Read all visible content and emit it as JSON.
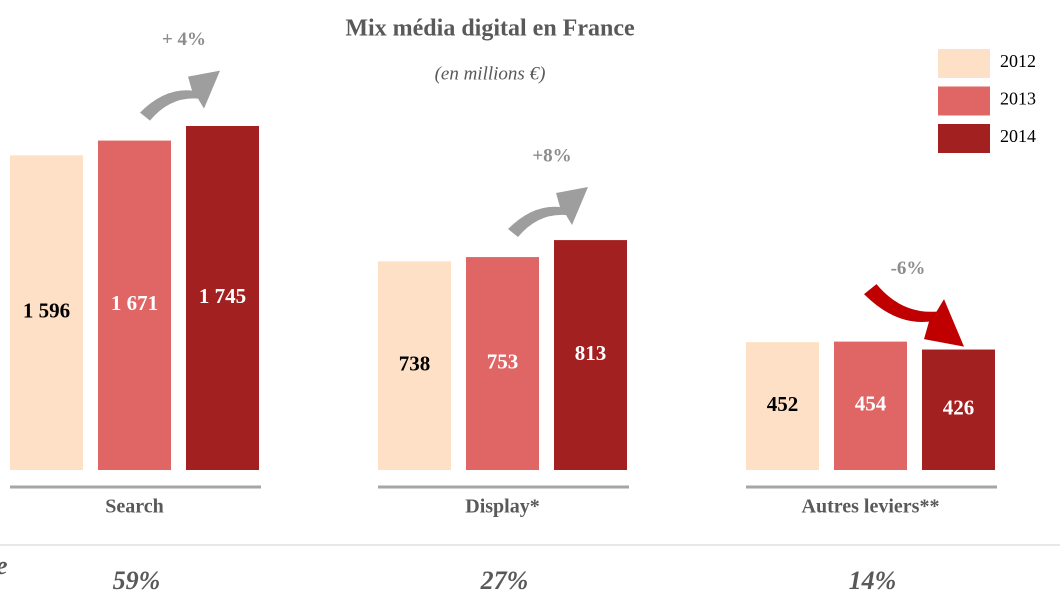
{
  "title": "Mix média digital en France",
  "subtitle": "(en millions €)",
  "left_note": "e",
  "chart_data": [
    {
      "type": "bar",
      "categories": [
        "Search"
      ],
      "ylim": [
        0,
        1750
      ],
      "series": [
        {
          "name": "2012",
          "color": "#fde0c5",
          "values": [
            1596
          ],
          "value_labels": [
            "1 596"
          ]
        },
        {
          "name": "2013",
          "color": "#e06666",
          "values": [
            1671
          ],
          "value_labels": [
            "1 671"
          ]
        },
        {
          "name": "2014",
          "color": "#a32020",
          "values": [
            1745
          ],
          "value_labels": [
            "1 745"
          ]
        }
      ],
      "annotation": "+ 4%",
      "arrow_color": "#9e9e9e",
      "arrow": "up",
      "share": 59,
      "share_label": "59%"
    },
    {
      "type": "bar",
      "categories": [
        "Display*"
      ],
      "ylim": [
        0,
        1220
      ],
      "series": [
        {
          "name": "2012",
          "color": "#fde0c5",
          "values": [
            738
          ]
        },
        {
          "name": "2013",
          "color": "#e06666",
          "values": [
            753
          ]
        },
        {
          "name": "2014",
          "color": "#a32020",
          "values": [
            813
          ]
        }
      ],
      "annotation": "+8%",
      "arrow_color": "#9e9e9e",
      "arrow": "up",
      "share": 27,
      "share_label": "27%"
    },
    {
      "type": "bar",
      "categories": [
        "Autres leviers**"
      ],
      "ylim": [
        0,
        1220
      ],
      "series": [
        {
          "name": "2012",
          "color": "#fde0c5",
          "values": [
            452
          ]
        },
        {
          "name": "2013",
          "color": "#e06666",
          "values": [
            454
          ]
        },
        {
          "name": "2014",
          "color": "#a32020",
          "values": [
            426
          ]
        }
      ],
      "annotation": "-6%",
      "arrow_color": "#c00000",
      "arrow": "down",
      "share": 14,
      "share_label": "14%"
    }
  ]
}
